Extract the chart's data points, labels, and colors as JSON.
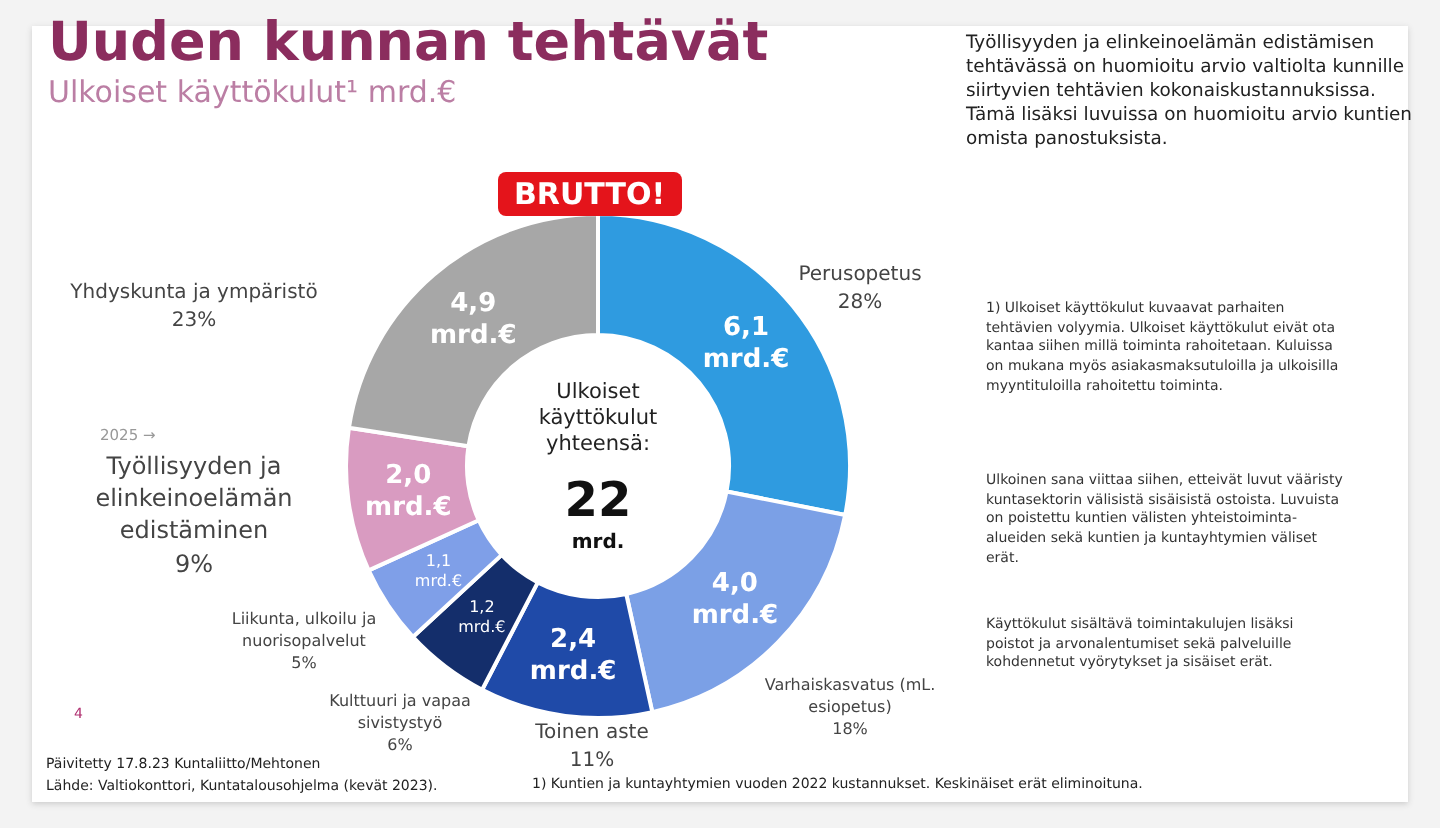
{
  "chart_data": {
    "type": "donut",
    "title": "Uuden kunnan tehtävät",
    "subtitle": "Ulkoiset käyttökulut¹ mrd.€",
    "categories": [
      "Perusopetus",
      "Varhaiskasvatus (mL. esiopetus)",
      "Toinen aste",
      "Kulttuuri ja vapaa sivistystyö",
      "Liikunta, ulkoilu ja nuorisopalvelut",
      "Työllisyyden ja elinkeinoelämän edistäminen",
      "Yhdyskunta ja ympäristö"
    ],
    "values": [
      6.1,
      4.0,
      2.4,
      1.2,
      1.1,
      2.0,
      4.9
    ],
    "value_labels": [
      "6,1 mrd.€",
      "4,0 mrd.€",
      "2,4 mrd.€",
      "1,2 mrd.€",
      "1,1 mrd.€",
      "2,0 mrd.€",
      "4,9 mrd.€"
    ],
    "colors": [
      "#2f9be0",
      "#7ba0e6",
      "#1f4aa8",
      "#142e6b",
      "#7f9fe8",
      "#d99bc1",
      "#a7a7a7"
    ],
    "legend": false,
    "annotations": [
      {
        "text": "28%",
        "x": "Perusopetus"
      },
      {
        "text": "18%",
        "x": "Varhaiskasvatus (mL. esiopetus)"
      },
      {
        "text": "11%",
        "x": "Toinen aste"
      },
      {
        "text": "6%",
        "x": "Kulttuuri ja vapaa sivistystyö"
      },
      {
        "text": "5%",
        "x": "Liikunta, ulkoilu ja nuorisopalvelut"
      },
      {
        "text": "9%",
        "x": "Työllisyyden ja elinkeinoelämän edistäminen"
      },
      {
        "text": "23%",
        "x": "Yhdyskunta ja ympäristö"
      },
      "BRUTTO!",
      "Ulkoiset käyttökulut yhteensä:",
      "22",
      "mrd.",
      "2025 →",
      "Työllisyyden ja elinkeinoelämän edistämisen tehtävässä on huomioitu arvio valtiolta kunnille siirtyvien tehtävien kokonaiskustannuksissa. Tämä lisäksi luvuissa on huomioitu arvio kuntien omista panostuksista.",
      "1) Ulkoiset käyttökulut kuvaavat parhaiten tehtävien volyymia. Ulkoiset käyttökulut eivät ota kantaa siihen millä toiminta rahoitetaan. Kuluissa on mukana myös asiakasmaksutuloilla ja ulkoisilla myyntituloilla rahoitettu toiminta.",
      "Ulkoinen sana viittaa siihen, etteivät luvut vääristy kuntasektorin välisistä sisäisistä ostoista. Luvuista on poistettu kuntien välisten yhteistoiminta-alueiden sekä kuntien ja kuntayhtymien väliset erät.",
      "Käyttökulut sisältävä toimintakulujen lisäksi poistot ja arvonalentumiset sekä palveluille kohdennetut vyörytykset ja sisäiset erät.",
      "Päivitetty 17.8.23 Kuntaliitto/Mehtonen",
      "Lähde: Valtiokonttori, Kuntatalousohjelma (kevät 2023).",
      "1) Kuntien ja kuntayhtymien vuoden 2022 kustannukset. Keskinäiset erät eliminoituna.",
      "4"
    ]
  }
}
